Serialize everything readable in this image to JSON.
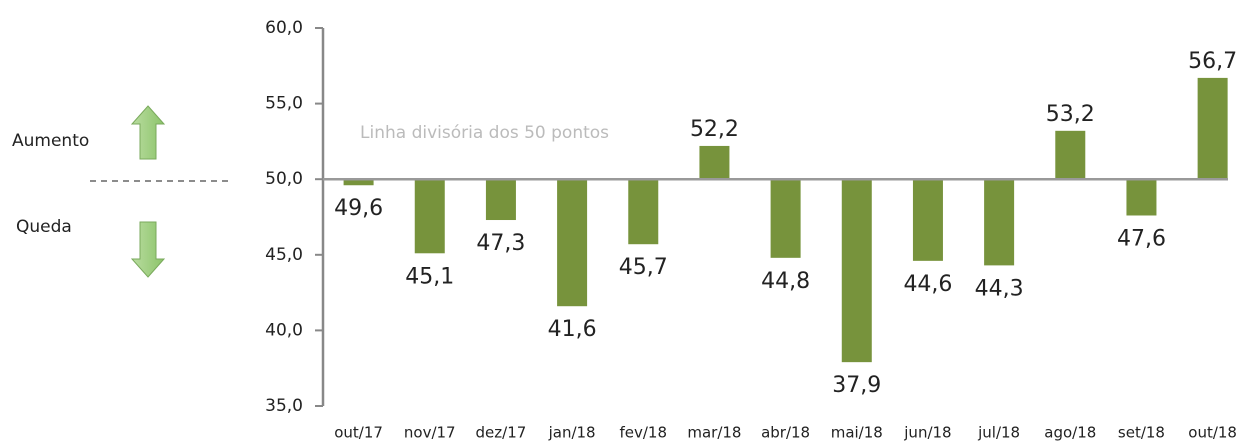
{
  "chart_data": {
    "type": "bar",
    "categories": [
      "out/17",
      "nov/17",
      "dez/17",
      "jan/18",
      "fev/18",
      "mar/18",
      "abr/18",
      "mai/18",
      "jun/18",
      "jul/18",
      "ago/18",
      "set/18",
      "out/18"
    ],
    "values": [
      49.6,
      45.1,
      47.3,
      41.6,
      45.7,
      52.2,
      44.8,
      37.9,
      44.6,
      44.3,
      53.2,
      47.6,
      56.7
    ],
    "value_labels": [
      "49,6",
      "45,1",
      "47,3",
      "41,6",
      "45,7",
      "52,2",
      "44,8",
      "37,9",
      "44,6",
      "44,3",
      "53,2",
      "47,6",
      "56,7"
    ],
    "color": "#77933c",
    "baseline": 50,
    "ylim": [
      35,
      60
    ],
    "yticks": [
      {
        "value": 35,
        "label": "35,0"
      },
      {
        "value": 40,
        "label": "40,0"
      },
      {
        "value": 45,
        "label": "45,0"
      },
      {
        "value": 50,
        "label": "50,0"
      },
      {
        "value": 55,
        "label": "55,0"
      },
      {
        "value": 60,
        "label": "60,0"
      }
    ],
    "annotations": {
      "divider": "Linha divisória dos 50 pontos",
      "up": "Aumento",
      "down": "Queda"
    }
  }
}
